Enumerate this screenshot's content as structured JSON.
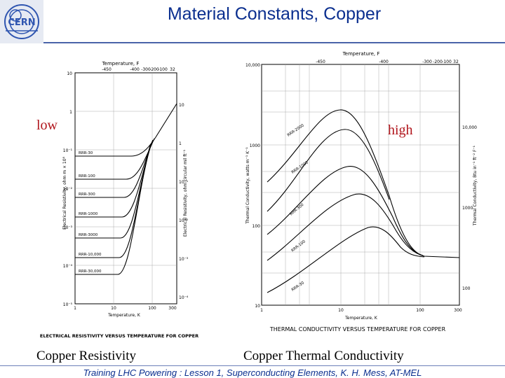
{
  "header": {
    "title": "Material Constants, Copper",
    "logo_text": "CERN"
  },
  "labels": {
    "low": "low",
    "high": "high"
  },
  "captions": {
    "left": "Copper Resistivity",
    "right": "Copper Thermal Conductivity"
  },
  "footer": "Training LHC Powering : Lesson 1, Superconducting Elements, K. H. Mess, AT-MEL",
  "left_figure": {
    "top_axis_title": "Temperature, F",
    "top_ticks": [
      "-450",
      "-400",
      "-300",
      "-200",
      "-100",
      "32"
    ],
    "left_ticks": [
      "10",
      "1",
      "10⁻¹",
      "10⁻²",
      "10⁻³",
      "10⁻⁴",
      "10⁻⁵"
    ],
    "right_ticks": [
      "10",
      "1",
      "10⁻¹",
      "10⁻²",
      "10⁻³",
      "10⁻⁴"
    ],
    "bottom_ticks": [
      "1",
      "10",
      "100",
      "300"
    ],
    "x_label": "Temperature, K",
    "y_label_left": "Electrical Resistivity, ohm m × 10⁸",
    "y_label_right": "Electrical Resistivity, ohm circular mil ft⁻¹",
    "curve_labels": [
      "RRR-30",
      "RRR-100",
      "RRR-300",
      "RRR-1000",
      "RRR-3000",
      "RRR-10,000",
      "RRR-30,000"
    ],
    "figure_caption": "ELECTRICAL RESISTIVITY VERSUS TEMPERATURE FOR COPPER"
  },
  "right_figure": {
    "top_axis_title": "Temperature, F",
    "top_ticks": [
      "-450",
      "-400",
      "-300",
      "-200",
      "-100",
      "32"
    ],
    "left_ticks": [
      "10,000",
      "1000",
      "100",
      "10"
    ],
    "right_ticks": [
      "10,000",
      "1000",
      "100"
    ],
    "bottom_ticks": [
      "1",
      "10",
      "100",
      "300"
    ],
    "x_label": "Temperature, K",
    "y_label_left": "Thermal Conductivity, watts m⁻¹ K⁻¹",
    "y_label_right": "Thermal Conductivity, Btu in⁻¹ ft⁻² F⁻¹",
    "curve_labels": [
      "RRR-2000",
      "RRR-1000",
      "RRR-300",
      "RRR-100",
      "RRR-30"
    ],
    "figure_caption": "THERMAL CONDUCTIVITY VERSUS TEMPERATURE FOR COPPER"
  },
  "colors": {
    "title": "#0b2f8f",
    "accent": "#b0141b",
    "logo_bg": "#e6eaf3",
    "rule": "#4a63a9"
  }
}
